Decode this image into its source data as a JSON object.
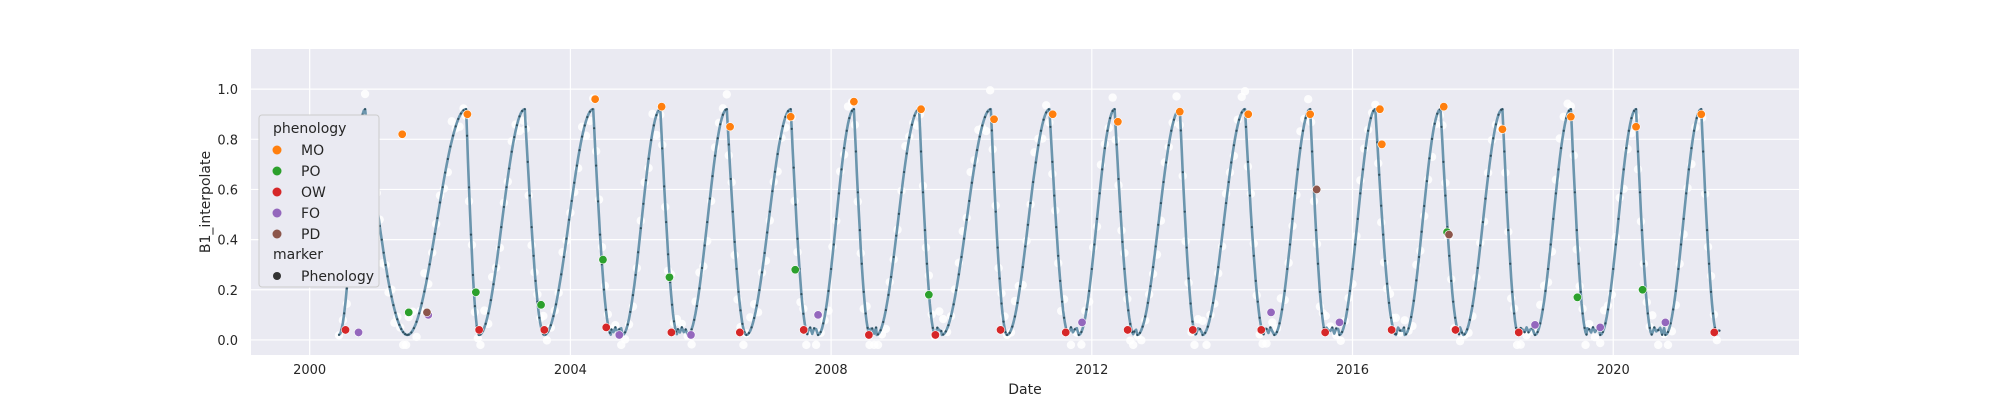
{
  "chart_data": {
    "type": "line",
    "xlabel": "Date",
    "ylabel": "B1_interpolate",
    "xlim": [
      1999.1,
      2022.85
    ],
    "ylim": [
      -0.06,
      1.16
    ],
    "x_ticks": [
      2000,
      2004,
      2008,
      2012,
      2016,
      2020
    ],
    "x_tick_labels": [
      "2000",
      "2004",
      "2008",
      "2012",
      "2016",
      "2020"
    ],
    "y_ticks": [
      0.0,
      0.2,
      0.4,
      0.6,
      0.8,
      1.0
    ],
    "y_tick_labels": [
      "0.0",
      "0.2",
      "0.4",
      "0.6",
      "0.8",
      "1.0"
    ],
    "grid": true,
    "background": "#eaeaf2",
    "line_color": "#6b95ad",
    "scatter_color": "#ffffff",
    "seasons": [
      {
        "low": 2000.45,
        "up_end": 2000.85,
        "mo": 2001.42,
        "po": 2001.52,
        "ow": 2000.55,
        "fo": 2001.82,
        "pd": 2001.8
      },
      {
        "low": 2001.5,
        "up_end": 2002.4,
        "mo": 2002.45,
        "po": 2002.55,
        "ow": 2002.6,
        "fo": null,
        "pd": null
      },
      {
        "low": 2002.6,
        "up_end": 2003.3,
        "mo": 2003.35,
        "po": 2003.55,
        "ow": 2003.6,
        "fo": null,
        "pd": null
      },
      {
        "low": 2003.6,
        "up_end": 2004.35,
        "mo": 2004.38,
        "po": 2004.5,
        "ow": 2004.55,
        "fo": 2004.75,
        "pd": null
      },
      {
        "low": 2004.8,
        "up_end": 2005.38,
        "mo": 2005.4,
        "po": 2005.52,
        "ow": 2005.55,
        "fo": 2005.85,
        "pd": null
      },
      {
        "low": 2005.8,
        "up_end": 2006.4,
        "mo": 2006.45,
        "po": 2007.45,
        "ow": 2006.6,
        "fo": null,
        "pd": null
      },
      {
        "low": 2006.7,
        "up_end": 2007.38,
        "mo": 2007.4,
        "po": 2007.45,
        "ow": 2007.58,
        "fo": 2007.8,
        "pd": null
      },
      {
        "low": 2007.8,
        "up_end": 2008.35,
        "mo": 2008.35,
        "po": null,
        "ow": 2008.58,
        "fo": null,
        "pd": null
      },
      {
        "low": 2008.7,
        "up_end": 2009.35,
        "mo": 2009.35,
        "po": 2009.5,
        "ow": 2009.6,
        "fo": null,
        "pd": null
      },
      {
        "low": 2009.7,
        "up_end": 2010.45,
        "mo": 2010.5,
        "po": null,
        "ow": 2010.6,
        "fo": null,
        "pd": null
      },
      {
        "low": 2010.7,
        "up_end": 2011.35,
        "mo": 2011.4,
        "po": null,
        "ow": 2011.6,
        "fo": 2011.85,
        "pd": null
      },
      {
        "low": 2011.8,
        "up_end": 2012.35,
        "mo": 2012.4,
        "po": null,
        "ow": 2012.55,
        "fo": null,
        "pd": null
      },
      {
        "low": 2012.7,
        "up_end": 2013.35,
        "mo": 2013.35,
        "po": null,
        "ow": 2013.55,
        "fo": null,
        "pd": null
      },
      {
        "low": 2013.7,
        "up_end": 2014.35,
        "mo": 2014.4,
        "po": null,
        "ow": 2014.6,
        "fo": 2014.75,
        "pd": null
      },
      {
        "low": 2014.8,
        "up_end": 2015.35,
        "mo": 2015.35,
        "po": null,
        "ow": 2015.58,
        "fo": 2015.8,
        "pd": 2015.45
      },
      {
        "low": 2015.8,
        "up_end": 2016.35,
        "mo": 2016.42,
        "po": null,
        "ow": 2016.6,
        "fo": null,
        "pd": null
      },
      {
        "low": 2016.8,
        "up_end": 2017.35,
        "mo": 2017.4,
        "po": 2017.45,
        "ow": 2017.58,
        "fo": null,
        "pd": 2017.48
      },
      {
        "low": 2017.7,
        "up_end": 2018.3,
        "mo": 2018.3,
        "po": null,
        "ow": 2018.55,
        "fo": 2018.8,
        "pd": null
      },
      {
        "low": 2018.8,
        "up_end": 2019.35,
        "mo": 2019.35,
        "po": 2019.45,
        "ow": null,
        "fo": 2019.8,
        "pd": null
      },
      {
        "low": 2019.8,
        "up_end": 2020.35,
        "mo": 2020.35,
        "po": 2020.45,
        "ow": null,
        "fo": 2020.8,
        "pd": null
      },
      {
        "low": 2020.8,
        "up_end": 2021.35,
        "mo": 2021.35,
        "po": null,
        "ow": 2021.55,
        "fo": null,
        "pd": null
      }
    ],
    "phenology_points": [
      {
        "phenology": "MO",
        "date": 2001.42,
        "value": 0.82
      },
      {
        "phenology": "MO",
        "date": 2002.42,
        "value": 0.9
      },
      {
        "phenology": "MO",
        "date": 2004.38,
        "value": 0.96
      },
      {
        "phenology": "MO",
        "date": 2005.4,
        "value": 0.93
      },
      {
        "phenology": "MO",
        "date": 2006.45,
        "value": 0.85
      },
      {
        "phenology": "MO",
        "date": 2007.38,
        "value": 0.89
      },
      {
        "phenology": "MO",
        "date": 2008.35,
        "value": 0.95
      },
      {
        "phenology": "MO",
        "date": 2009.38,
        "value": 0.92
      },
      {
        "phenology": "MO",
        "date": 2010.5,
        "value": 0.88
      },
      {
        "phenology": "MO",
        "date": 2011.4,
        "value": 0.9
      },
      {
        "phenology": "MO",
        "date": 2012.4,
        "value": 0.87
      },
      {
        "phenology": "MO",
        "date": 2013.35,
        "value": 0.91
      },
      {
        "phenology": "MO",
        "date": 2014.4,
        "value": 0.9
      },
      {
        "phenology": "MO",
        "date": 2015.35,
        "value": 0.9
      },
      {
        "phenology": "MO",
        "date": 2016.42,
        "value": 0.92
      },
      {
        "phenology": "MO",
        "date": 2016.45,
        "value": 0.78
      },
      {
        "phenology": "MO",
        "date": 2017.4,
        "value": 0.93
      },
      {
        "phenology": "MO",
        "date": 2018.3,
        "value": 0.84
      },
      {
        "phenology": "MO",
        "date": 2019.35,
        "value": 0.89
      },
      {
        "phenology": "MO",
        "date": 2020.35,
        "value": 0.85
      },
      {
        "phenology": "MO",
        "date": 2021.35,
        "value": 0.9
      },
      {
        "phenology": "PO",
        "date": 2001.52,
        "value": 0.11
      },
      {
        "phenology": "PO",
        "date": 2002.55,
        "value": 0.19
      },
      {
        "phenology": "PO",
        "date": 2003.55,
        "value": 0.14
      },
      {
        "phenology": "PO",
        "date": 2004.5,
        "value": 0.32
      },
      {
        "phenology": "PO",
        "date": 2005.52,
        "value": 0.25
      },
      {
        "phenology": "PO",
        "date": 2007.45,
        "value": 0.28
      },
      {
        "phenology": "PO",
        "date": 2009.5,
        "value": 0.18
      },
      {
        "phenology": "PO",
        "date": 2017.45,
        "value": 0.43
      },
      {
        "phenology": "PO",
        "date": 2019.45,
        "value": 0.17
      },
      {
        "phenology": "PO",
        "date": 2020.45,
        "value": 0.2
      },
      {
        "phenology": "OW",
        "date": 2000.55,
        "value": 0.04
      },
      {
        "phenology": "OW",
        "date": 2002.6,
        "value": 0.04
      },
      {
        "phenology": "OW",
        "date": 2003.6,
        "value": 0.04
      },
      {
        "phenology": "OW",
        "date": 2004.55,
        "value": 0.05
      },
      {
        "phenology": "OW",
        "date": 2005.55,
        "value": 0.03
      },
      {
        "phenology": "OW",
        "date": 2006.6,
        "value": 0.03
      },
      {
        "phenology": "OW",
        "date": 2007.58,
        "value": 0.04
      },
      {
        "phenology": "OW",
        "date": 2008.58,
        "value": 0.02
      },
      {
        "phenology": "OW",
        "date": 2009.6,
        "value": 0.02
      },
      {
        "phenology": "OW",
        "date": 2010.6,
        "value": 0.04
      },
      {
        "phenology": "OW",
        "date": 2011.6,
        "value": 0.03
      },
      {
        "phenology": "OW",
        "date": 2012.55,
        "value": 0.04
      },
      {
        "phenology": "OW",
        "date": 2013.55,
        "value": 0.04
      },
      {
        "phenology": "OW",
        "date": 2014.6,
        "value": 0.04
      },
      {
        "phenology": "OW",
        "date": 2015.58,
        "value": 0.03
      },
      {
        "phenology": "OW",
        "date": 2016.6,
        "value": 0.04
      },
      {
        "phenology": "OW",
        "date": 2017.58,
        "value": 0.04
      },
      {
        "phenology": "OW",
        "date": 2018.55,
        "value": 0.03
      },
      {
        "phenology": "OW",
        "date": 2021.55,
        "value": 0.03
      },
      {
        "phenology": "FO",
        "date": 2000.75,
        "value": 0.03
      },
      {
        "phenology": "FO",
        "date": 2001.82,
        "value": 0.1
      },
      {
        "phenology": "FO",
        "date": 2004.75,
        "value": 0.02
      },
      {
        "phenology": "FO",
        "date": 2005.85,
        "value": 0.02
      },
      {
        "phenology": "FO",
        "date": 2007.8,
        "value": 0.1
      },
      {
        "phenology": "FO",
        "date": 2011.85,
        "value": 0.07
      },
      {
        "phenology": "FO",
        "date": 2014.75,
        "value": 0.11
      },
      {
        "phenology": "FO",
        "date": 2015.8,
        "value": 0.07
      },
      {
        "phenology": "FO",
        "date": 2018.8,
        "value": 0.06
      },
      {
        "phenology": "FO",
        "date": 2019.8,
        "value": 0.05
      },
      {
        "phenology": "FO",
        "date": 2020.8,
        "value": 0.07
      },
      {
        "phenology": "PD",
        "date": 2001.8,
        "value": 0.11
      },
      {
        "phenology": "PD",
        "date": 2015.45,
        "value": 0.6
      },
      {
        "phenology": "PD",
        "date": 2017.48,
        "value": 0.42
      }
    ],
    "legend": {
      "placement": "center-left",
      "title1": "phenology",
      "entries": [
        {
          "label": "MO",
          "color": "#ff7f0e"
        },
        {
          "label": "PO",
          "color": "#2ca02c"
        },
        {
          "label": "OW",
          "color": "#d62728"
        },
        {
          "label": "FO",
          "color": "#9467bd"
        },
        {
          "label": "PD",
          "color": "#8c564b"
        }
      ],
      "title2": "marker",
      "marker_entry": {
        "label": "Phenology",
        "color": "#333333"
      }
    }
  }
}
